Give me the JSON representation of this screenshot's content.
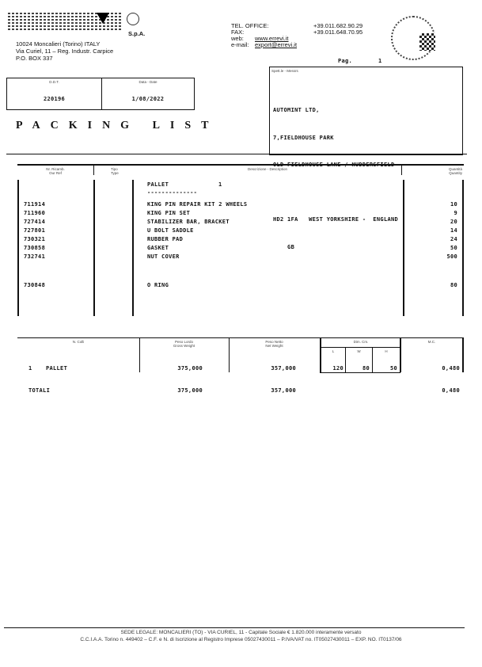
{
  "company": {
    "suffix": "S.p.A.",
    "address": [
      "10024 Moncalieri (Torino) ITALY",
      "Via Curiel, 11 – Reg. Industr. Carpice",
      "P.O. BOX 337"
    ]
  },
  "contacts": [
    {
      "label": "TEL. OFFICE:",
      "value": "+39.011.682.90.29"
    },
    {
      "label": "FAX:",
      "value": "+39.011.648.70.95"
    },
    {
      "label": "web:",
      "value": "www.errevi.it"
    },
    {
      "label": "e-mail:",
      "value": "export@errevi.it"
    }
  ],
  "page": {
    "label": "Pag.",
    "number": "1"
  },
  "ddt": {
    "label": "D.D.T.",
    "value": "220196"
  },
  "date": {
    "label": "Data - Date",
    "value": "1/08/2022"
  },
  "title": "PACKING LIST",
  "consignee": {
    "label": "Spett.le - Messrs",
    "lines": [
      "AUTOMINT LTD,",
      "7,FIELDHOUSE PARK",
      "OLD FIELDHOUSE LANE / HUDDERSFIELD",
      "",
      "HD2 1FA   WEST YORKSHIRE -  ENGLAND",
      "    GB"
    ]
  },
  "items_table": {
    "headers": {
      "ref": "Nr. Ricamb.\nOur Ref",
      "type": "Tipo\nType",
      "desc": "Descrizione - Description",
      "qty": "Quantità\nQuantity"
    },
    "pallet_line": {
      "label": "PALLET",
      "number": "1",
      "separator": "--------------"
    },
    "rows": [
      {
        "ref": "711914",
        "desc": "KING PIN REPAIR KIT 2 WHEELS",
        "qty": "10"
      },
      {
        "ref": "711960",
        "desc": "KING PIN SET",
        "qty": "9"
      },
      {
        "ref": "727414",
        "desc": "STABILIZER BAR, BRACKET",
        "qty": "20"
      },
      {
        "ref": "727801",
        "desc": "U BOLT SADDLE",
        "qty": "14"
      },
      {
        "ref": "730321",
        "desc": "RUBBER PAD",
        "qty": "24"
      },
      {
        "ref": "730858",
        "desc": "GASKET",
        "qty": "50"
      },
      {
        "ref": "732741",
        "desc": "NUT COVER",
        "qty": "500"
      },
      {
        "ref": "730848",
        "desc": "O RING",
        "qty": "80"
      }
    ]
  },
  "weights_table": {
    "headers": {
      "packages": "N. Colli",
      "gross": "Peso Lordo\nGross Weight",
      "net": "Peso Netto\nNet Weight",
      "dims": "Dim. Cm.",
      "l": "L",
      "w": "W",
      "h": "H",
      "volume": "M.C."
    },
    "row": {
      "packages": "1",
      "type": "PALLET",
      "gross": "375,000",
      "net": "357,000",
      "l": "120",
      "w": "80",
      "h": "50",
      "volume": "0,480"
    },
    "totals": {
      "label": "TOTALI",
      "gross": "375,000",
      "net": "357,000",
      "volume": "0,480"
    }
  },
  "footer": {
    "line1": "SEDE LEGALE: MONCALIERI (TO) - VIA CURIEL, 11 - Capitale Sociale € 1.820.000 interamente versato",
    "line2": "C.C.I.A.A. Torino n. 449402 – C.F. e N. di Iscrizione al Registro Imprese 05027430011 – P.IVA/VAT no. IT05027430011 – EXP. NO. IT0137/06"
  }
}
